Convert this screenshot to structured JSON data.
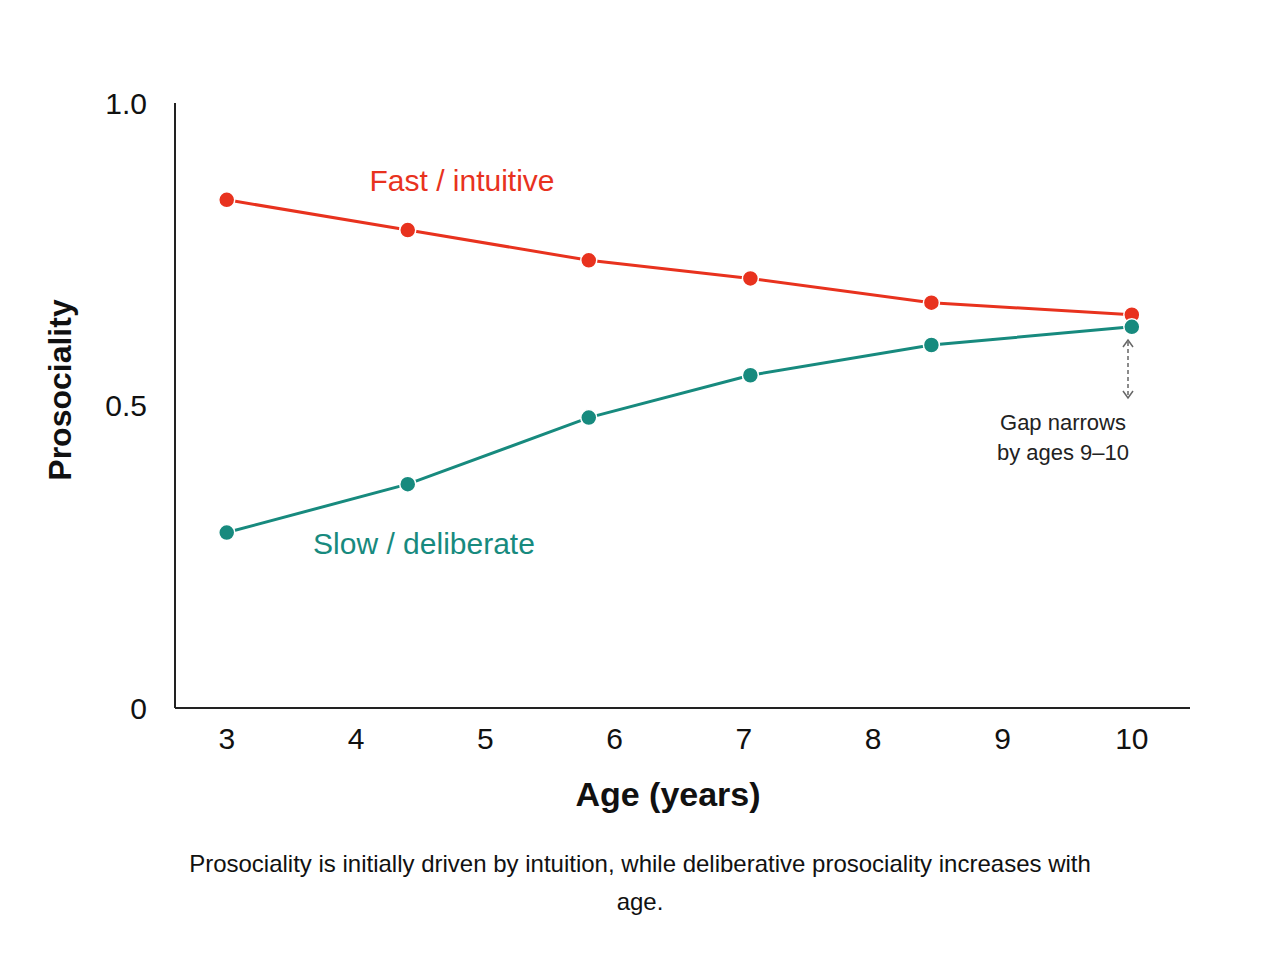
{
  "chart_data": {
    "type": "line",
    "x_label": "Age (years)",
    "y_label": "Prosociality",
    "caption": "Prosociality is initially driven by intuition, while deliberative prosociality increases with age.",
    "annotation": "Gap narrows by ages 9–10",
    "x": [
      3,
      4.4,
      5.8,
      7.05,
      8.45,
      10
    ],
    "xlim": [
      2.6,
      10.45
    ],
    "xticks": [
      3,
      4,
      5,
      6,
      7,
      8,
      9,
      10
    ],
    "ylim": [
      0,
      1
    ],
    "yticks": [
      0,
      0.5,
      {
        "value": 1,
        "label": "1.0"
      }
    ],
    "series": [
      {
        "name": "Fast / intuitive",
        "color": "#e8321e",
        "marker": "circle",
        "values": [
          0.84,
          0.79,
          0.74,
          0.71,
          0.67,
          0.65
        ]
      },
      {
        "name": "Slow / deliberate",
        "color": "#178a7e",
        "marker": "circle",
        "values": [
          0.29,
          0.37,
          0.48,
          0.55,
          0.6,
          0.63
        ]
      }
    ]
  }
}
